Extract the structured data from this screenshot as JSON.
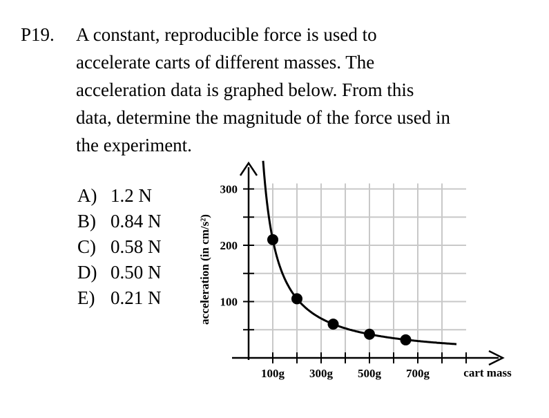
{
  "problem": {
    "number": "P19.",
    "lines": [
      "A constant, reproducible force is used to",
      "accelerate carts of different masses.  The",
      "acceleration data is graphed below.  From this",
      "data, determine the magnitude of the force used in",
      "the experiment."
    ]
  },
  "choices": [
    {
      "letter": "A)",
      "text": "1.2 N"
    },
    {
      "letter": "B)",
      "text": "0.84 N"
    },
    {
      "letter": "C)",
      "text": "0.58 N"
    },
    {
      "letter": "D)",
      "text": "0.50 N"
    },
    {
      "letter": "E)",
      "text": "0.21 N"
    }
  ],
  "chart_data": {
    "type": "scatter",
    "title": "",
    "xlabel": "cart mass",
    "ylabel": "acceleration (in cm/s²)",
    "x_tick_labels": [
      "100g",
      "300g",
      "500g",
      "700g"
    ],
    "y_tick_labels": [
      "100",
      "200",
      "300"
    ],
    "xlim": [
      0,
      900
    ],
    "ylim": [
      0,
      300
    ],
    "grid": true,
    "points": [
      {
        "x": 100,
        "y": 210
      },
      {
        "x": 200,
        "y": 105
      },
      {
        "x": 350,
        "y": 60
      },
      {
        "x": 500,
        "y": 42
      },
      {
        "x": 650,
        "y": 32
      }
    ],
    "curve": {
      "k": 21000,
      "x_from": 60,
      "x_to": 860
    }
  }
}
